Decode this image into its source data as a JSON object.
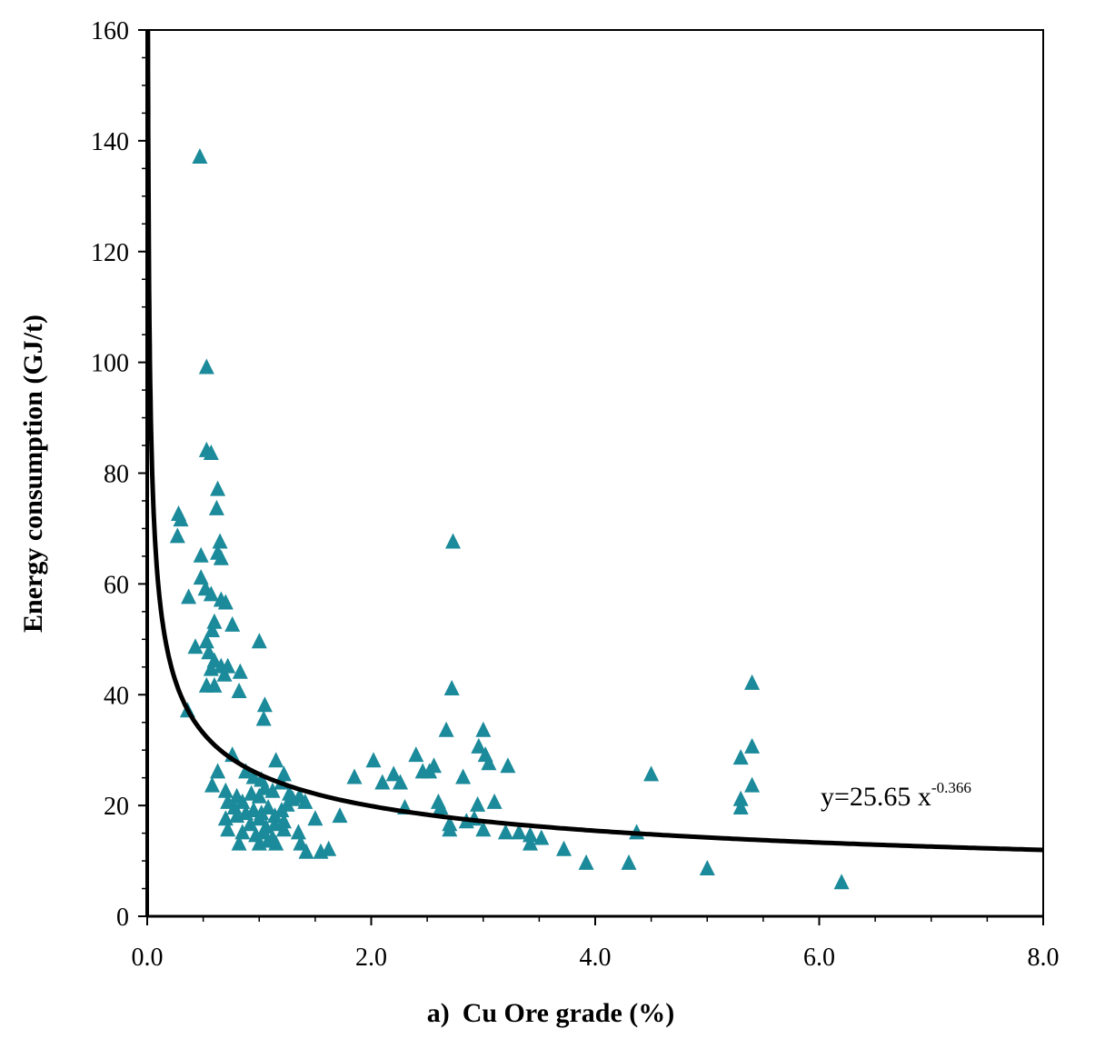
{
  "chart_data": {
    "type": "scatter",
    "xlabel_prefix": "a)",
    "xlabel": "Cu Ore grade (%)",
    "ylabel": "Energy consumption (GJ/t)",
    "xlim": [
      0,
      8
    ],
    "ylim": [
      0,
      160
    ],
    "x_ticks": [
      0,
      2,
      4,
      6,
      8
    ],
    "x_tick_labels": [
      "0.0",
      "2.0",
      "4.0",
      "6.0",
      "8.0"
    ],
    "y_ticks": [
      0,
      20,
      40,
      60,
      80,
      100,
      120,
      140,
      160
    ],
    "y_tick_labels": [
      "0",
      "20",
      "40",
      "60",
      "80",
      "100",
      "120",
      "140",
      "160"
    ],
    "x_minor_step": 0.5,
    "y_minor_step": 5,
    "grid": false,
    "marker_color": "#1b8a9a",
    "line_color": "#000000",
    "trendline": {
      "formula_prefix": "y=25.65 x",
      "formula_exponent": "-0.366",
      "coefficient": 25.65,
      "exponent": -0.366
    },
    "points": [
      [
        0.47,
        137
      ],
      [
        0.53,
        99
      ],
      [
        0.53,
        84
      ],
      [
        0.57,
        83.5
      ],
      [
        0.63,
        77
      ],
      [
        0.62,
        73.5
      ],
      [
        0.28,
        72.5
      ],
      [
        0.3,
        71.5
      ],
      [
        0.27,
        68.5
      ],
      [
        0.65,
        67.5
      ],
      [
        0.63,
        65.5
      ],
      [
        0.66,
        64.5
      ],
      [
        0.48,
        65
      ],
      [
        0.48,
        61
      ],
      [
        0.52,
        59
      ],
      [
        0.37,
        57.5
      ],
      [
        0.57,
        58
      ],
      [
        0.66,
        57
      ],
      [
        0.7,
        56.5
      ],
      [
        0.6,
        53
      ],
      [
        0.58,
        51.5
      ],
      [
        0.53,
        49.5
      ],
      [
        0.55,
        47.5
      ],
      [
        0.43,
        48.5
      ],
      [
        0.6,
        46
      ],
      [
        0.57,
        44.5
      ],
      [
        0.66,
        45
      ],
      [
        0.69,
        43.5
      ],
      [
        0.72,
        45
      ],
      [
        0.83,
        44
      ],
      [
        0.53,
        41.5
      ],
      [
        0.6,
        41.5
      ],
      [
        0.76,
        52.5
      ],
      [
        1.0,
        49.5
      ],
      [
        0.82,
        40.5
      ],
      [
        1.05,
        38
      ],
      [
        0.36,
        37
      ],
      [
        1.04,
        35.5
      ],
      [
        0.76,
        29
      ],
      [
        1.15,
        28
      ],
      [
        0.63,
        26
      ],
      [
        0.88,
        26
      ],
      [
        0.95,
        25
      ],
      [
        1.02,
        24.5
      ],
      [
        1.22,
        25.5
      ],
      [
        0.58,
        23.5
      ],
      [
        0.7,
        22.5
      ],
      [
        0.8,
        21.5
      ],
      [
        0.85,
        20.5
      ],
      [
        0.93,
        22
      ],
      [
        1.0,
        21.5
      ],
      [
        1.05,
        23
      ],
      [
        1.12,
        22.5
      ],
      [
        1.2,
        24
      ],
      [
        1.27,
        22
      ],
      [
        0.72,
        20.5
      ],
      [
        0.78,
        19.5
      ],
      [
        0.88,
        18.5
      ],
      [
        0.95,
        19
      ],
      [
        1.02,
        18.5
      ],
      [
        1.08,
        19.5
      ],
      [
        1.14,
        18
      ],
      [
        1.2,
        19
      ],
      [
        1.25,
        20
      ],
      [
        1.3,
        21
      ],
      [
        1.36,
        21.5
      ],
      [
        1.41,
        20.5
      ],
      [
        0.7,
        17.5
      ],
      [
        0.8,
        18
      ],
      [
        0.92,
        16.5
      ],
      [
        1.0,
        17.5
      ],
      [
        1.06,
        16
      ],
      [
        1.14,
        16.5
      ],
      [
        1.22,
        17
      ],
      [
        0.72,
        15.5
      ],
      [
        0.85,
        15
      ],
      [
        0.97,
        14.5
      ],
      [
        1.04,
        15
      ],
      [
        1.12,
        14
      ],
      [
        1.22,
        15.5
      ],
      [
        0.82,
        13
      ],
      [
        1.0,
        13
      ],
      [
        1.08,
        13.5
      ],
      [
        1.15,
        13
      ],
      [
        1.35,
        15
      ],
      [
        1.37,
        13
      ],
      [
        1.42,
        11.5
      ],
      [
        1.55,
        11.5
      ],
      [
        1.62,
        12
      ],
      [
        1.5,
        17.5
      ],
      [
        1.72,
        18
      ],
      [
        1.85,
        25
      ],
      [
        2.02,
        28
      ],
      [
        2.1,
        24
      ],
      [
        2.2,
        25.5
      ],
      [
        2.26,
        24
      ],
      [
        2.3,
        19.5
      ],
      [
        2.4,
        29
      ],
      [
        2.46,
        26
      ],
      [
        2.52,
        26
      ],
      [
        2.56,
        27
      ],
      [
        2.6,
        20.5
      ],
      [
        2.62,
        19.5
      ],
      [
        2.67,
        33.5
      ],
      [
        2.7,
        16.5
      ],
      [
        2.7,
        15.5
      ],
      [
        2.72,
        41
      ],
      [
        2.73,
        67.5
      ],
      [
        2.82,
        25
      ],
      [
        2.85,
        17
      ],
      [
        2.92,
        17.5
      ],
      [
        2.95,
        20
      ],
      [
        2.96,
        30.5
      ],
      [
        3.0,
        33.5
      ],
      [
        3.02,
        29
      ],
      [
        3.05,
        27.5
      ],
      [
        3.0,
        15.5
      ],
      [
        3.1,
        20.5
      ],
      [
        3.22,
        27
      ],
      [
        3.2,
        15
      ],
      [
        3.32,
        15
      ],
      [
        3.42,
        13
      ],
      [
        3.42,
        14.5
      ],
      [
        3.52,
        14
      ],
      [
        3.72,
        12
      ],
      [
        3.92,
        9.5
      ],
      [
        4.3,
        9.5
      ],
      [
        4.37,
        15
      ],
      [
        4.5,
        25.5
      ],
      [
        5.0,
        8.5
      ],
      [
        5.3,
        28.5
      ],
      [
        5.3,
        21
      ],
      [
        5.3,
        19.5
      ],
      [
        5.4,
        42
      ],
      [
        5.4,
        30.5
      ],
      [
        5.4,
        23.5
      ],
      [
        6.2,
        6
      ]
    ]
  }
}
